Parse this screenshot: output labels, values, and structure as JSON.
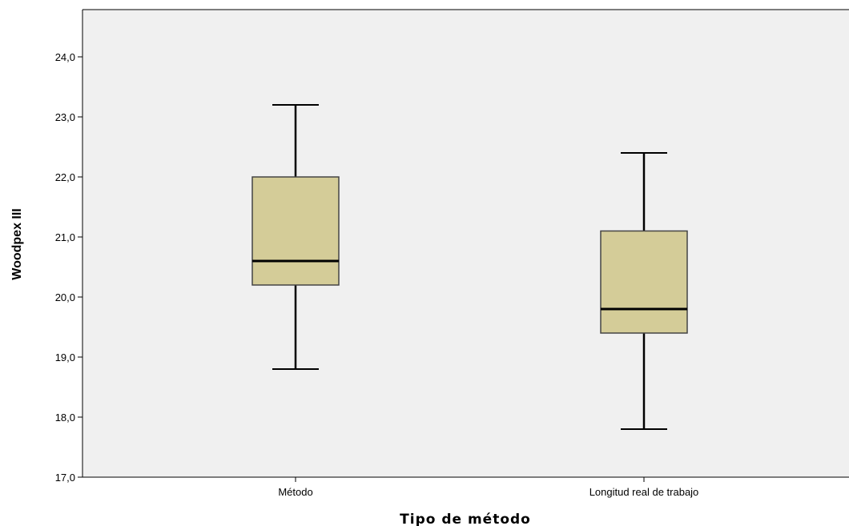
{
  "chart_data": {
    "type": "boxplot",
    "title": "",
    "xlabel": "Tipo de método",
    "ylabel": "Woodpex III",
    "ylim": [
      17.0,
      24.8
    ],
    "yticks": [
      17.0,
      18.0,
      19.0,
      20.0,
      21.0,
      22.0,
      23.0,
      24.0
    ],
    "ytick_labels": [
      "17,0",
      "18,0",
      "19,0",
      "20,0",
      "21,0",
      "22,0",
      "23,0",
      "24,0"
    ],
    "grid": false,
    "colors": {
      "box_fill": "#d4cc98",
      "plot_background": "#f0f0f0",
      "stroke": "#000000"
    },
    "categories": [
      "Método",
      "Longitud real de trabajo"
    ],
    "boxes": [
      {
        "category": "Método",
        "whisker_low": 18.8,
        "q1": 20.2,
        "median": 20.6,
        "q3": 22.0,
        "whisker_high": 23.2
      },
      {
        "category": "Longitud real de trabajo",
        "whisker_low": 17.8,
        "q1": 19.4,
        "median": 19.8,
        "q3": 21.1,
        "whisker_high": 22.4
      }
    ]
  }
}
